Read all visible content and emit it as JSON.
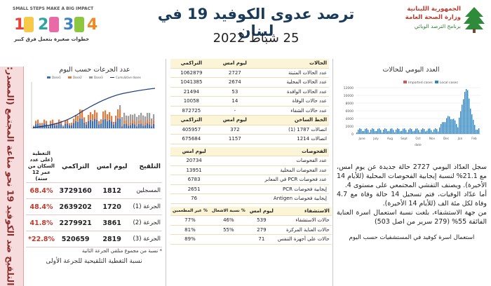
{
  "header": {
    "title": "ترصد عدوى الكوفيد 19 في لبنان",
    "date": "25 شباط 2022",
    "ministry_line1": "الجمهورية اللبنانية",
    "ministry_line2": "وزارة الصحة العامة",
    "ministry_line3": "برنامج الترصد الوبائي",
    "campaign_line1": "SMALL STEPS MAKE A BIG IMPACT",
    "campaign_line2": "خطوات صغيرة بتعمل فرق كبير"
  },
  "daily_chart": {
    "title": "العدد اليومي للحالات",
    "legend": [
      "Imported cases",
      "Local cases"
    ],
    "y_ticks": [
      "12000",
      "10000",
      "8000",
      "6000",
      "4000",
      "2000",
      "0"
    ],
    "x_ticks": [
      "June",
      "July",
      "Aug",
      "Sept",
      "Oct",
      "Nov",
      "Dec",
      "Jan",
      "Feb"
    ],
    "x_label": "date",
    "colors": {
      "imported": "#d9534f",
      "local": "#2e86c1"
    }
  },
  "stats_table": {
    "header": [
      "الحالات",
      "ليوم امس",
      "التراكمي"
    ],
    "rows": [
      {
        "label": "عدد الحالات المثبتة",
        "today": "2727",
        "total": "1062879"
      },
      {
        "label": "عدد الحالات المحلية",
        "today": "2674",
        "total": "1041385"
      },
      {
        "label": "عدد الحالات الوافدة",
        "today": "53",
        "total": "21494"
      },
      {
        "label": "عدد حالات الوفاة",
        "today": "14",
        "total": "10058"
      },
      {
        "label": "عدد حالات الشفاء",
        "today": "-",
        "total": "872725"
      }
    ],
    "hotline_header": [
      "الخط الساخن",
      "ليوم امس",
      "التراكمي"
    ],
    "hotline_rows": [
      {
        "label": "اتصالات 1787 (1)",
        "today": "372",
        "total": "405957"
      },
      {
        "label": "اتصالات 1214",
        "today": "1157",
        "total": "675684"
      }
    ],
    "tests_header": [
      "الفحوصات",
      "ليوم امس"
    ],
    "tests_rows": [
      {
        "label": "عدد الفحوصات",
        "today": "20734"
      },
      {
        "label": "عدد الفحوصات المحلية",
        "today": "13951"
      },
      {
        "label": "عدد فحوصات PCR في المعابر",
        "today": "6783"
      },
      {
        "label": "إيجابية فحوصات PCR",
        "today": "2651"
      },
      {
        "label": "إيجابية فحوصات Antigen",
        "today": "76"
      }
    ],
    "hospital_header": [
      "الاستشفاء",
      "ليوم امس",
      "% نسبة الاشغال",
      "% غير المطعمين"
    ],
    "hospital_rows": [
      {
        "label": "حالات الاستشفاء",
        "today": "539",
        "occ": "46%",
        "unvac": "77%"
      },
      {
        "label": "حالات العناية المركزة",
        "today": "279",
        "occ": "55%",
        "unvac": "81%"
      },
      {
        "label": "حالات على أجهزة التنفس",
        "today": "71",
        "occ": "",
        "unvac": "89%"
      }
    ]
  },
  "vaccine_chart": {
    "title": "عدد الجرعات حسب اليوم",
    "legend": [
      "Dose1",
      "Dose2",
      "Dose3",
      "Cumulative doses"
    ]
  },
  "vaccine_table": {
    "header": [
      "التلقيح",
      "ليوم امس",
      "التراكمي",
      "التغطية (على عدد السكان من عمر 12 سنة)"
    ],
    "rows": [
      {
        "label": "المسجلين",
        "today": "1812",
        "total": "3729160",
        "coverage": "68.4%"
      },
      {
        "label": "الجرعة (1)",
        "today": "1720",
        "total": "2639202",
        "coverage": "48.4%"
      },
      {
        "label": "الجرعة (2)",
        "today": "3861",
        "total": "2279921",
        "coverage": "41.8%"
      },
      {
        "label": "الجرعة (3)",
        "today": "2819",
        "total": "520659",
        "coverage": "22.8%*"
      }
    ],
    "footnote": "* نسبة من مجموع متلقي الجرعة الثانية",
    "bottom_note": "نسبة التغطية التلقيحية للجرعة الأولى"
  },
  "side_banner": {
    "text": "التلقيح ضد الكوفيد 19 نحو مناعة المجتمع (المصدر: قاعدة بيانات"
  },
  "narrative": {
    "p1": "سجل العدّاد اليومي 2727 حالة جديدة عن يوم امس، مع 21.1% لنسبة إيجابية الفحوصات المحلية (للأيام 14 الأخيرة). ويصنف التفشي المجتمعي على مستوى 4.",
    "p2": "أما عدّاد الوفيات، فتم تسجيل 14 حالة وفاة مع 4.7 وفاة لكل مئة الف (للأيام 14 الأخيرة).",
    "p3": "من جهة الاستشفاء، بلغت نسبة استعمال اسرة العناية الفائقة 55% (279 سرير من اصل 503)",
    "p4": "استعمال اسرة كوفيد في المستشفيات حسب اليوم"
  }
}
